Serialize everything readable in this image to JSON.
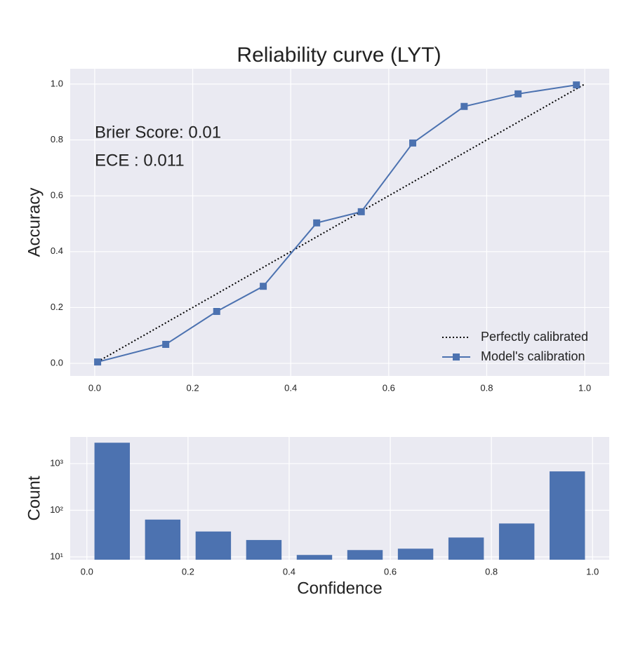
{
  "chart_data": [
    {
      "type": "line",
      "title": "Reliability curve (LYT)",
      "y_label": "Accuracy",
      "annotations": [
        "Brier Score: 0.01",
        "ECE : 0.011"
      ],
      "xlim": [
        -0.05,
        1.05
      ],
      "ylim": [
        -0.045,
        1.055
      ],
      "xticks": [
        {
          "value": 0,
          "label": "0.0"
        },
        0.2,
        0.4,
        0.6,
        0.8,
        {
          "value": 1,
          "label": "1.0"
        }
      ],
      "yticks": [
        {
          "value": 0,
          "label": "0.0"
        },
        0.2,
        0.4,
        0.6,
        0.8,
        {
          "value": 1,
          "label": "1.0"
        }
      ],
      "grid": true,
      "legend": "lower right",
      "series": [
        {
          "name": "Perfectly calibrated",
          "color": "#000000",
          "linestyle": "dotted",
          "x": [
            0,
            1
          ],
          "values": [
            0,
            1
          ]
        },
        {
          "name": "Model's calibration",
          "color": "#4c72b0",
          "linestyle": "solid",
          "marker": "square",
          "x": [
            0.006,
            0.145,
            0.249,
            0.344,
            0.453,
            0.544,
            0.649,
            0.754,
            0.864,
            0.983
          ],
          "values": [
            0.005,
            0.068,
            0.186,
            0.276,
            0.503,
            0.543,
            0.789,
            0.92,
            0.965,
            0.997
          ]
        }
      ]
    },
    {
      "type": "bar",
      "x_label": "Confidence",
      "y_label": "Count",
      "xlim": [
        -0.033,
        1.033
      ],
      "ylim": [
        8.7,
        3720
      ],
      "log_y": true,
      "xticks": [
        {
          "value": 0,
          "label": "0.0"
        },
        0.2,
        0.4,
        0.6,
        0.8,
        {
          "value": 1,
          "label": "1.0"
        }
      ],
      "yticks": [
        {
          "value": 10,
          "label": "10¹"
        },
        {
          "value": 100,
          "label": "10²"
        },
        {
          "value": 1000,
          "label": "10³"
        }
      ],
      "grid": true,
      "color": "#4c72b0",
      "x": [
        0.05,
        0.15,
        0.25,
        0.35,
        0.45,
        0.55,
        0.65,
        0.75,
        0.85,
        0.95
      ],
      "values": [
        2800,
        63,
        35,
        23,
        11,
        14,
        15,
        26,
        52,
        680
      ]
    }
  ]
}
